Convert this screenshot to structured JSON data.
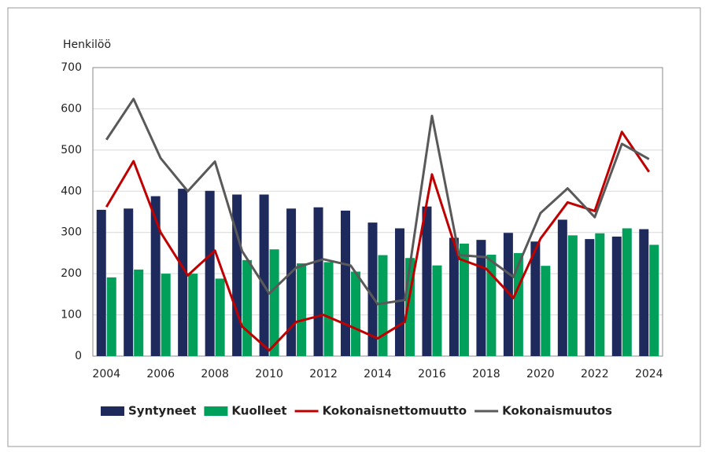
{
  "chart_data": {
    "type": "bar_line",
    "y_label": "Henkilöö",
    "categories": [
      "2004",
      null,
      "2006",
      null,
      "2008",
      null,
      "2010",
      null,
      "2012",
      null,
      "2014",
      null,
      "2016",
      null,
      "2018",
      null,
      "2020",
      null,
      "2022",
      null,
      "2024"
    ],
    "series": [
      {
        "name": "Syntyneet",
        "kind": "bar",
        "color": "#1f2a5c",
        "values": [
          355,
          358,
          388,
          406,
          401,
          392,
          392,
          358,
          361,
          353,
          324,
          310,
          363,
          287,
          282,
          299,
          278,
          331,
          284,
          290,
          308
        ]
      },
      {
        "name": "Kuolleet",
        "kind": "bar",
        "color": "#00a05a",
        "values": [
          191,
          210,
          200,
          200,
          188,
          233,
          259,
          225,
          228,
          205,
          245,
          238,
          220,
          273,
          246,
          250,
          219,
          293,
          298,
          310,
          270
        ]
      },
      {
        "name": "Kokonaisnettomuutto",
        "kind": "line",
        "color": "#c00000",
        "values": [
          362,
          473,
          300,
          196,
          256,
          72,
          14,
          83,
          100,
          72,
          43,
          83,
          441,
          236,
          212,
          141,
          285,
          373,
          352,
          544,
          447
        ]
      },
      {
        "name": "Kokonaismuutos",
        "kind": "line",
        "color": "#595959",
        "values": [
          525,
          624,
          480,
          400,
          472,
          255,
          152,
          215,
          235,
          220,
          126,
          136,
          583,
          245,
          240,
          192,
          347,
          407,
          337,
          515,
          478
        ]
      }
    ],
    "ylim": [
      0,
      700
    ],
    "yticks": [
      0,
      100,
      200,
      300,
      400,
      500,
      600,
      700
    ],
    "grid": true,
    "legend": "bottom"
  }
}
